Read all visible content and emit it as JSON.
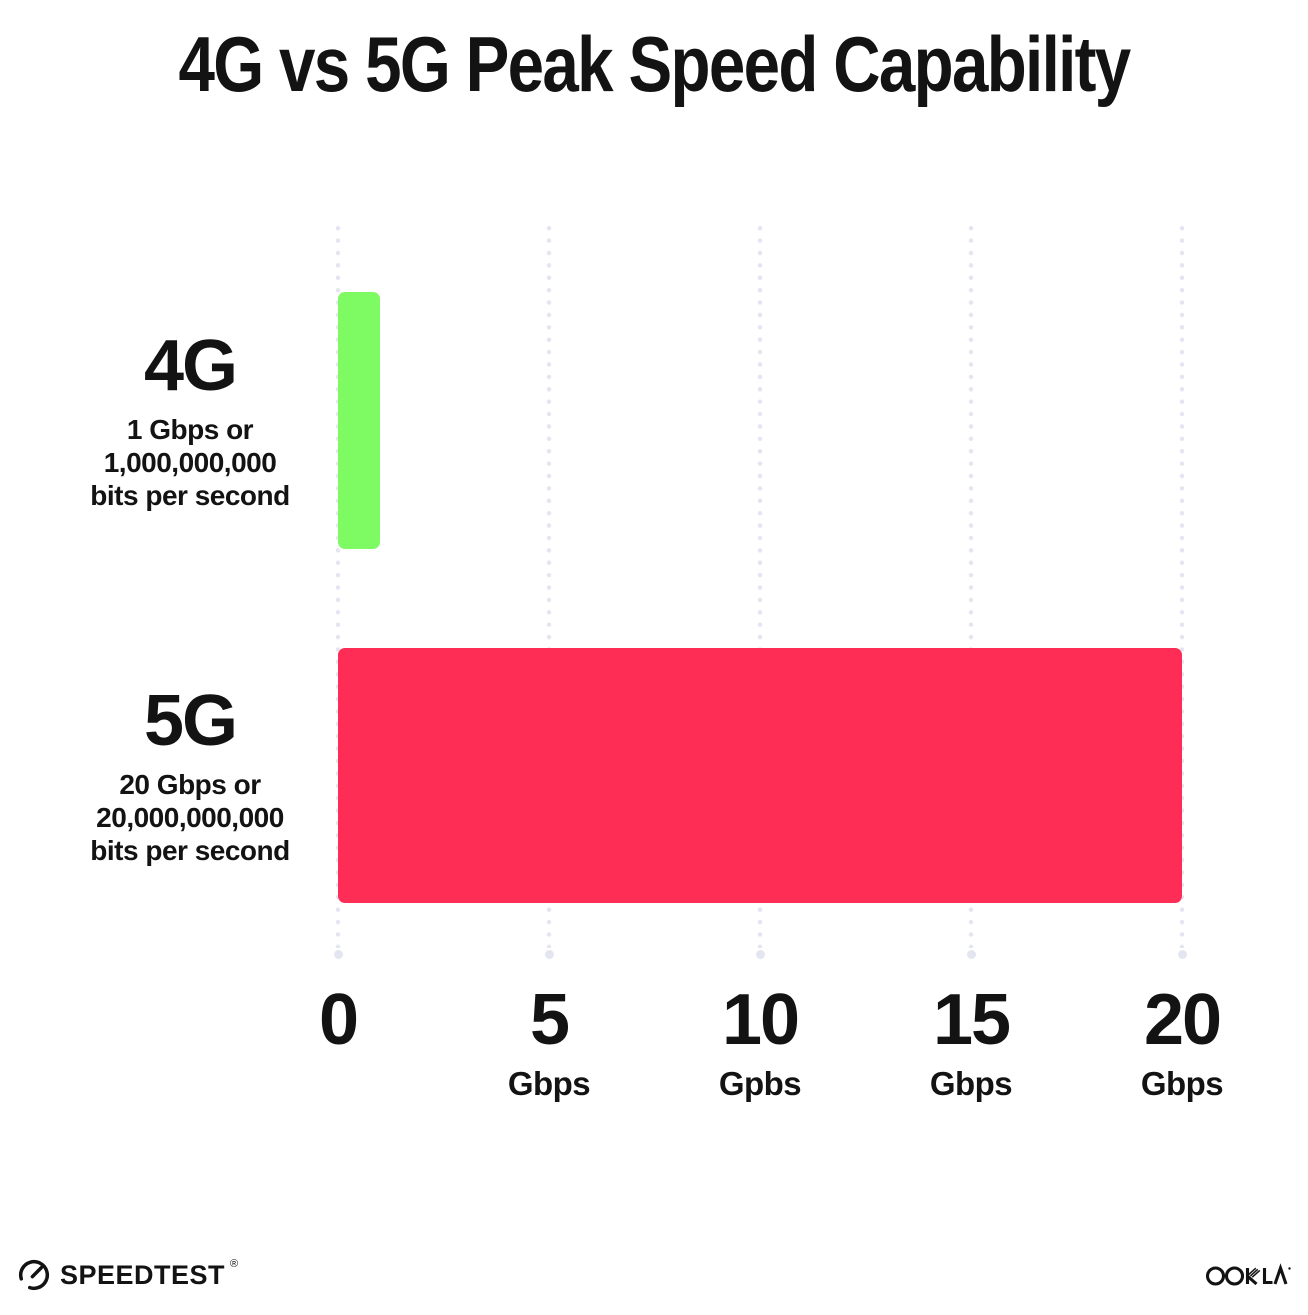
{
  "chart_data": {
    "type": "bar",
    "orientation": "horizontal",
    "title": "4G vs 5G Peak Speed Capability",
    "categories": [
      "4G",
      "5G"
    ],
    "values": [
      1,
      20
    ],
    "value_unit": "Gbps",
    "xlim": [
      0,
      20
    ],
    "grid": {
      "style": "dotted",
      "direction": "vertical",
      "color": "#E3E6F0"
    },
    "bars": [
      {
        "label": "4G",
        "value_gbps": 1,
        "color": "#7EFA63",
        "sublabel_lines": [
          "1 Gbps or",
          "1,000,000,000",
          "bits per second"
        ]
      },
      {
        "label": "5G",
        "value_gbps": 20,
        "color": "#FE2D55",
        "sublabel_lines": [
          "20 Gbps or",
          "20,000,000,000",
          "bits per second"
        ]
      }
    ],
    "x_ticks": [
      {
        "label": "0",
        "sublabel": ""
      },
      {
        "label": "5",
        "sublabel": "Gbps"
      },
      {
        "label": "10",
        "sublabel": "Gpbs"
      },
      {
        "label": "15",
        "sublabel": "Gbps"
      },
      {
        "label": "20",
        "sublabel": "Gbps"
      }
    ]
  },
  "footer": {
    "speedtest": {
      "label": "SPEEDTEST",
      "mark": "®"
    },
    "ookla": {
      "label": "OOKLA",
      "mark": "®"
    }
  },
  "colors": {
    "background": "#FFFFFF",
    "text": "#131313",
    "bar_4g": "#7EFA63",
    "bar_5g": "#FE2D55",
    "grid": "#E3E6F0"
  }
}
